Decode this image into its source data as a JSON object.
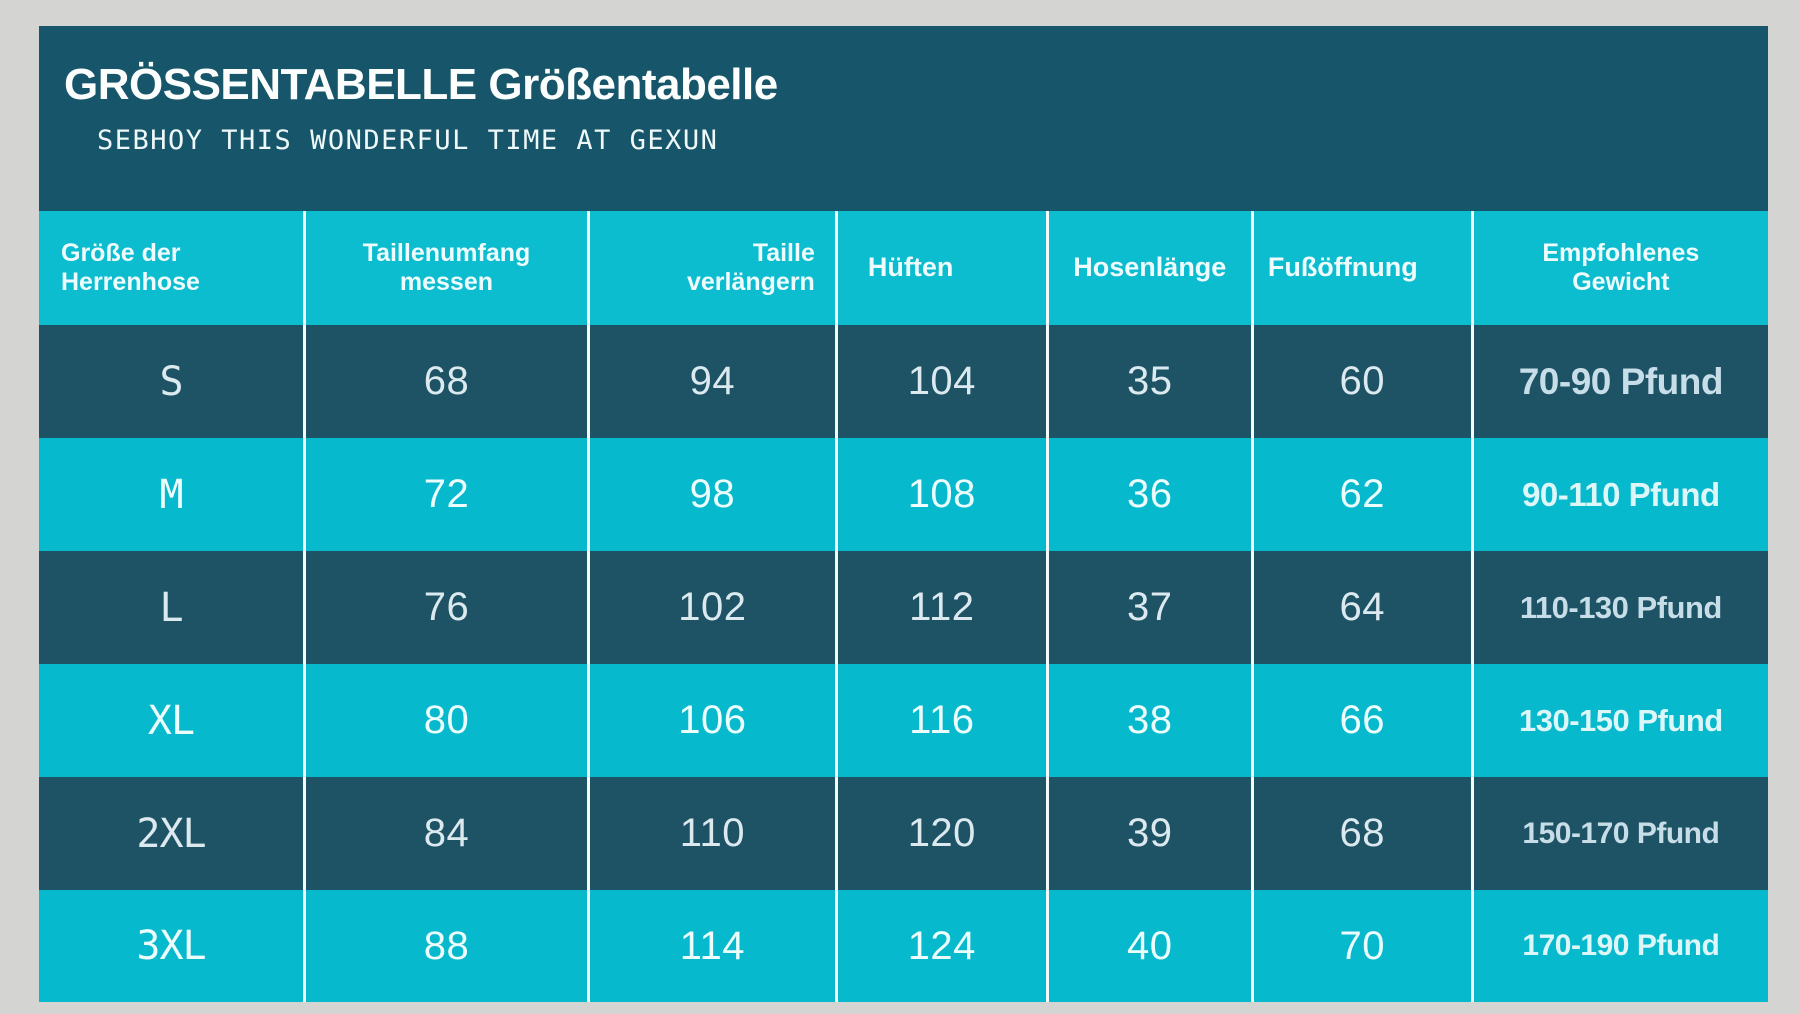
{
  "header": {
    "title": "GRÖSSENTABELLE Größentabelle",
    "subtitle": "SEBHOY THIS WONDERFUL TIME AT GEXUN"
  },
  "palette": {
    "page_background": "#d4d5d3",
    "title_band": "#17566a",
    "header_row": "#0cbccf",
    "row_dark": "#1d5365",
    "row_cyan": "#07b9cd",
    "separator": "#f2fcfd",
    "weight_text_on_dark": "#c7dde8",
    "weight_text_on_cyan": "#ddf7f9"
  },
  "table": {
    "headers": [
      "Größe der\nHerrenhose",
      "Taillenumfang\nmessen",
      "Taille\nverlängern",
      "Hüften",
      "Hosenlänge",
      "Fußöffnung",
      "Empfohlenes\nGewicht"
    ],
    "rows": [
      {
        "cells": [
          "S",
          "68",
          "94",
          "104",
          "35",
          "60",
          "70-90 Pfund"
        ]
      },
      {
        "cells": [
          "M",
          "72",
          "98",
          "108",
          "36",
          "62",
          "90-110 Pfund"
        ]
      },
      {
        "cells": [
          "L",
          "76",
          "102",
          "112",
          "37",
          "64",
          "110-130 Pfund"
        ]
      },
      {
        "cells": [
          "XL",
          "80",
          "106",
          "116",
          "38",
          "66",
          "130-150 Pfund"
        ]
      },
      {
        "cells": [
          "2XL",
          "84",
          "110",
          "120",
          "39",
          "68",
          "150-170 Pfund"
        ]
      },
      {
        "cells": [
          "3XL",
          "88",
          "114",
          "124",
          "40",
          "70",
          "170-190 Pfund"
        ]
      }
    ]
  },
  "chart_data": {
    "type": "table",
    "title": "GRÖSSENTABELLE Größentabelle",
    "subtitle": "SEBHOY THIS WONDERFUL TIME AT GEXUN",
    "columns": [
      "Größe der Herrenhose",
      "Taillenumfang messen",
      "Taille verlängern",
      "Hüften",
      "Hosenlänge",
      "Fußöffnung",
      "Empfohlenes Gewicht"
    ],
    "rows": [
      [
        "S",
        68,
        94,
        104,
        35,
        60,
        "70-90 Pfund"
      ],
      [
        "M",
        72,
        98,
        108,
        36,
        62,
        "90-110 Pfund"
      ],
      [
        "L",
        76,
        102,
        112,
        37,
        64,
        "110-130 Pfund"
      ],
      [
        "XL",
        80,
        106,
        116,
        38,
        66,
        "130-150 Pfund"
      ],
      [
        "2XL",
        84,
        110,
        120,
        39,
        68,
        "150-170 Pfund"
      ],
      [
        "3XL",
        88,
        114,
        124,
        40,
        70,
        "170-190 Pfund"
      ]
    ]
  }
}
